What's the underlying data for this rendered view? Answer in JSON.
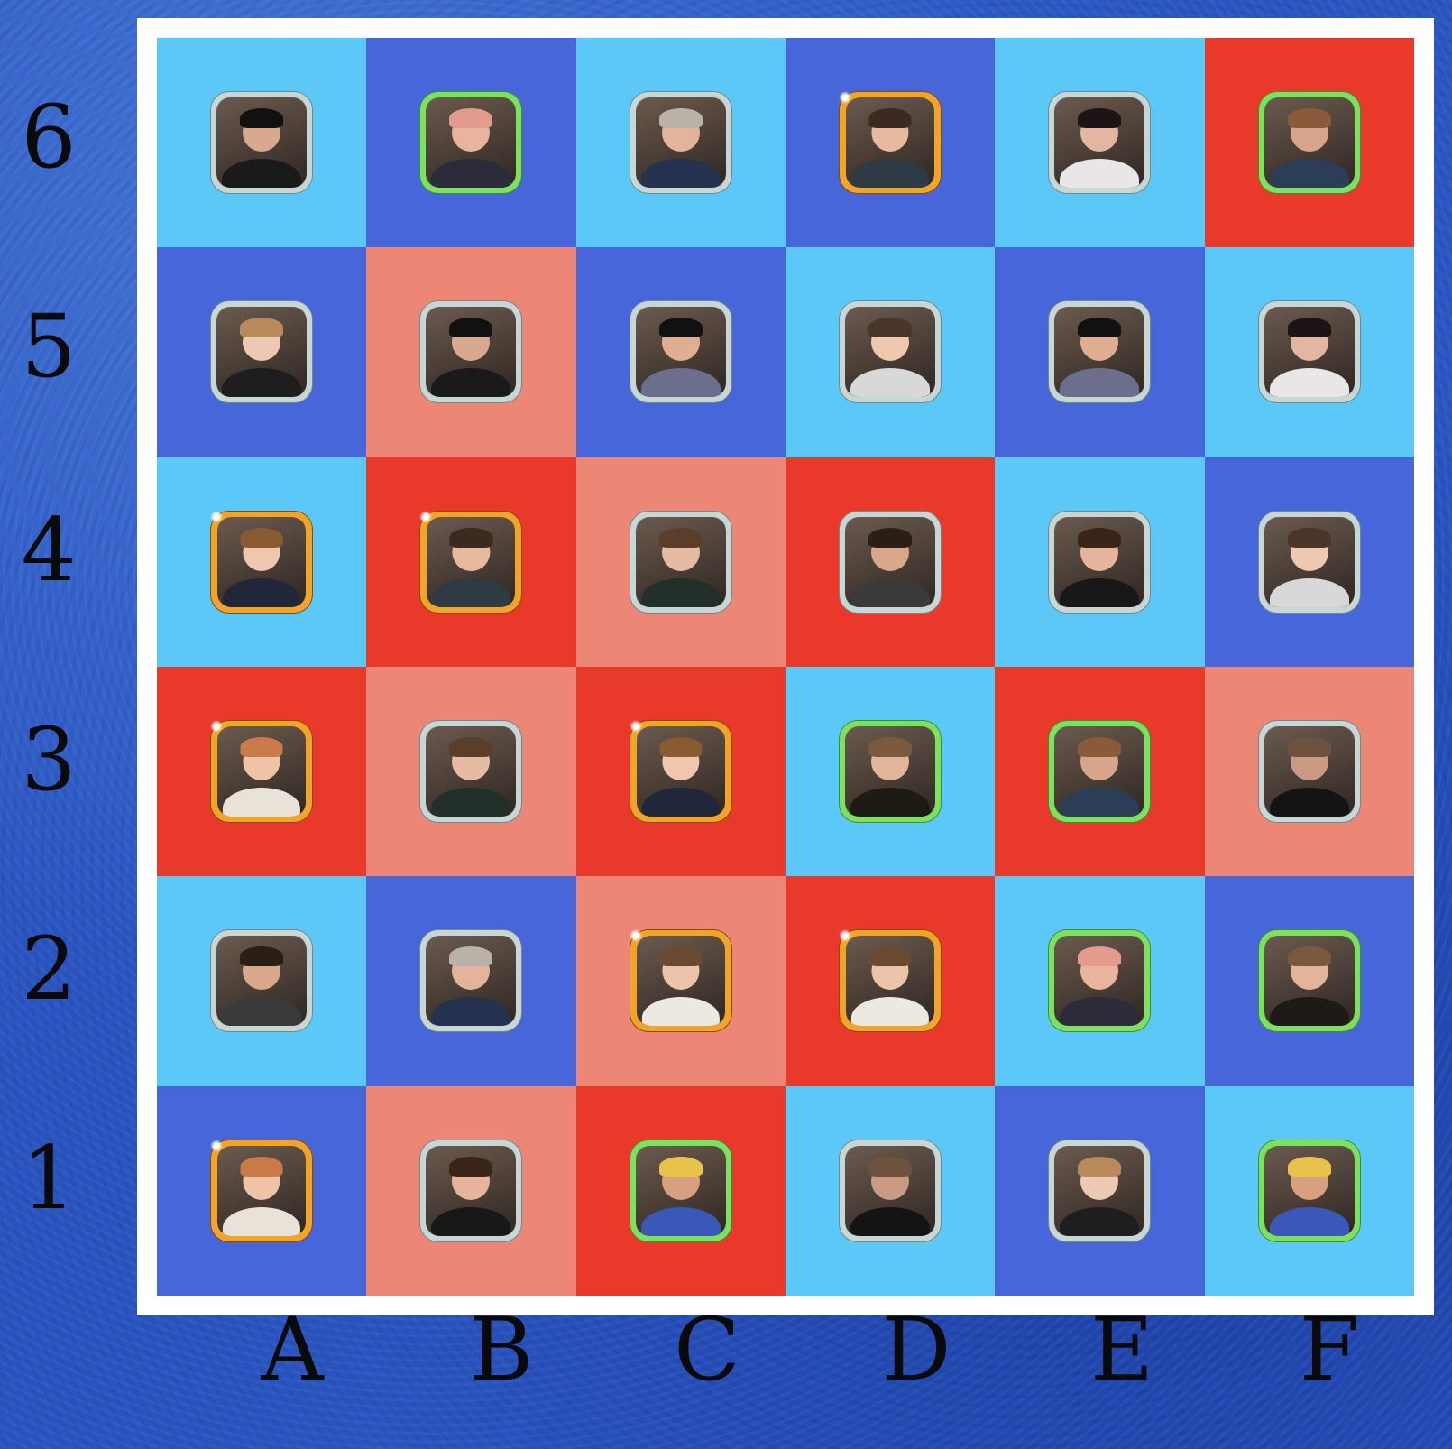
{
  "colors": {
    "light_blue": "#5bc8f7",
    "blue": "#4766d9",
    "red": "#e8392a",
    "salmon": "#ec8778",
    "frame": "#ffffff",
    "background": "#2a57c2"
  },
  "ranks": [
    "6",
    "5",
    "4",
    "3",
    "2",
    "1"
  ],
  "files": [
    "A",
    "B",
    "C",
    "D",
    "E",
    "F"
  ],
  "rows": [
    [
      {
        "bg": "light_blue",
        "frame": "silver",
        "icon": "beanie-man-portrait-icon",
        "skin": "#d9a98f",
        "hair": "#111111",
        "shirt": "#1a1a1a"
      },
      {
        "bg": "blue",
        "frame": "green",
        "icon": "pink-hair-woman-portrait-icon",
        "skin": "#e8b49c",
        "hair": "#e39b8e",
        "shirt": "#2b2b3a"
      },
      {
        "bg": "light_blue",
        "frame": "silver",
        "icon": "grey-hair-man-portrait-icon",
        "skin": "#e4b49a",
        "hair": "#b9b2a8",
        "shirt": "#24324f"
      },
      {
        "bg": "blue",
        "frame": "gold",
        "icon": "glasses-boy-portrait-icon",
        "skin": "#e7b99d",
        "hair": "#3a2a1f",
        "shirt": "#2e3b44"
      },
      {
        "bg": "light_blue",
        "frame": "silver",
        "icon": "dark-hair-woman-portrait-icon",
        "skin": "#e2b6a0",
        "hair": "#1c1414",
        "shirt": "#e8e6e6"
      },
      {
        "bg": "red",
        "frame": "green",
        "icon": "mirror-selfie-woman-portrait-icon",
        "skin": "#d7a58b",
        "hair": "#8a5a3a",
        "shirt": "#2c3d57"
      }
    ],
    [
      {
        "bg": "blue",
        "frame": "silver",
        "icon": "blonde-woman-portrait-icon",
        "skin": "#edc8b3",
        "hair": "#b88a5c",
        "shirt": "#1e1e1e"
      },
      {
        "bg": "salmon",
        "frame": "silver",
        "icon": "beanie-man-portrait-icon",
        "skin": "#d9a98f",
        "hair": "#111111",
        "shirt": "#1a1a1a"
      },
      {
        "bg": "blue",
        "frame": "silver",
        "icon": "sunglasses-man-portrait-icon",
        "skin": "#e0ae90",
        "hair": "#111111",
        "shirt": "#6c6e8e"
      },
      {
        "bg": "light_blue",
        "frame": "silver",
        "icon": "tshirt-boy-portrait-icon",
        "skin": "#efc8b0",
        "hair": "#4a3628",
        "shirt": "#d8d8d8"
      },
      {
        "bg": "blue",
        "frame": "silver",
        "icon": "sunglasses-man-portrait-icon",
        "skin": "#e0ae90",
        "hair": "#111111",
        "shirt": "#6c6e8e"
      },
      {
        "bg": "light_blue",
        "frame": "silver",
        "icon": "dark-hair-woman-portrait-icon",
        "skin": "#e2b6a0",
        "hair": "#1c1414",
        "shirt": "#e8e6e6"
      }
    ],
    [
      {
        "bg": "light_blue",
        "frame": "gold",
        "icon": "smiling-boy-portrait-icon",
        "skin": "#f0c6ae",
        "hair": "#8a5a30",
        "shirt": "#22263a"
      },
      {
        "bg": "red",
        "frame": "gold",
        "icon": "glasses-boy-portrait-icon",
        "skin": "#e7b99d",
        "hair": "#3a2a1f",
        "shirt": "#2e3b44"
      },
      {
        "bg": "salmon",
        "frame": "silver",
        "icon": "waving-man-portrait-icon",
        "skin": "#e6bba4",
        "hair": "#5a3e2a",
        "shirt": "#23302a"
      },
      {
        "bg": "red",
        "frame": "silver",
        "icon": "curly-hair-man-portrait-icon",
        "skin": "#d9a88c",
        "hair": "#2a1e16",
        "shirt": "#3a3a3a"
      },
      {
        "bg": "light_blue",
        "frame": "silver",
        "icon": "long-hair-woman-portrait-icon",
        "skin": "#e6b49a",
        "hair": "#3a2418",
        "shirt": "#181818"
      },
      {
        "bg": "blue",
        "frame": "silver",
        "icon": "tshirt-boy-portrait-icon",
        "skin": "#efc8b0",
        "hair": "#4a3628",
        "shirt": "#d8d8d8"
      }
    ],
    [
      {
        "bg": "red",
        "frame": "gold",
        "icon": "ginger-man-portrait-icon",
        "skin": "#f0c2a6",
        "hair": "#c97a48",
        "shirt": "#e9e2d8"
      },
      {
        "bg": "salmon",
        "frame": "silver",
        "icon": "waving-man-portrait-icon",
        "skin": "#e6bba4",
        "hair": "#5a3e2a",
        "shirt": "#23302a"
      },
      {
        "bg": "red",
        "frame": "gold",
        "icon": "smiling-boy-portrait-icon",
        "skin": "#f0c6ae",
        "hair": "#8a5a30",
        "shirt": "#22263a"
      },
      {
        "bg": "light_blue",
        "frame": "green",
        "icon": "shaggy-hair-man-portrait-icon",
        "skin": "#e2b49a",
        "hair": "#7a5a3e",
        "shirt": "#1e1a16"
      },
      {
        "bg": "red",
        "frame": "green",
        "icon": "mirror-selfie-woman-portrait-icon",
        "skin": "#d7a58b",
        "hair": "#8a5a3a",
        "shirt": "#2c3d57"
      },
      {
        "bg": "salmon",
        "frame": "silver",
        "icon": "close-up-boy-portrait-icon",
        "skin": "#c99a84",
        "hair": "#6e5240",
        "shirt": "#141414"
      }
    ],
    [
      {
        "bg": "light_blue",
        "frame": "silver",
        "icon": "curly-hair-man-portrait-icon",
        "skin": "#d9a88c",
        "hair": "#2a1e16",
        "shirt": "#3a3a3a"
      },
      {
        "bg": "blue",
        "frame": "silver",
        "icon": "grey-hair-man-portrait-icon",
        "skin": "#e4b49a",
        "hair": "#b9b2a8",
        "shirt": "#24324f"
      },
      {
        "bg": "salmon",
        "frame": "gold",
        "icon": "white-shirt-boy-portrait-icon",
        "skin": "#edc4aa",
        "hair": "#6a4a30",
        "shirt": "#ece8e2"
      },
      {
        "bg": "red",
        "frame": "gold",
        "icon": "white-shirt-boy-portrait-icon",
        "skin": "#edc4aa",
        "hair": "#6a4a30",
        "shirt": "#ece8e2"
      },
      {
        "bg": "light_blue",
        "frame": "green",
        "icon": "pink-hair-woman-portrait-icon",
        "skin": "#e8b49c",
        "hair": "#e39b8e",
        "shirt": "#2b2b3a"
      },
      {
        "bg": "blue",
        "frame": "green",
        "icon": "shaggy-hair-man-portrait-icon",
        "skin": "#e2b49a",
        "hair": "#7a5a3e",
        "shirt": "#1e1a16"
      }
    ],
    [
      {
        "bg": "blue",
        "frame": "gold",
        "icon": "ginger-man-portrait-icon",
        "skin": "#f0c2a6",
        "hair": "#c97a48",
        "shirt": "#e9e2d8"
      },
      {
        "bg": "salmon",
        "frame": "silver",
        "icon": "long-hair-woman-portrait-icon",
        "skin": "#e6b49a",
        "hair": "#3a2418",
        "shirt": "#181818"
      },
      {
        "bg": "red",
        "frame": "green",
        "icon": "costumed-sultan-portrait-icon",
        "skin": "#d8a07e",
        "hair": "#e8c24a",
        "shirt": "#3a58b8"
      },
      {
        "bg": "light_blue",
        "frame": "silver",
        "icon": "close-up-boy-portrait-icon",
        "skin": "#c99a84",
        "hair": "#6e5240",
        "shirt": "#141414"
      },
      {
        "bg": "blue",
        "frame": "silver",
        "icon": "blonde-woman-portrait-icon",
        "skin": "#edc8b3",
        "hair": "#b88a5c",
        "shirt": "#1e1e1e"
      },
      {
        "bg": "light_blue",
        "frame": "green",
        "icon": "costumed-sultan-portrait-icon",
        "skin": "#d8a07e",
        "hair": "#e8c24a",
        "shirt": "#3a58b8"
      }
    ]
  ]
}
